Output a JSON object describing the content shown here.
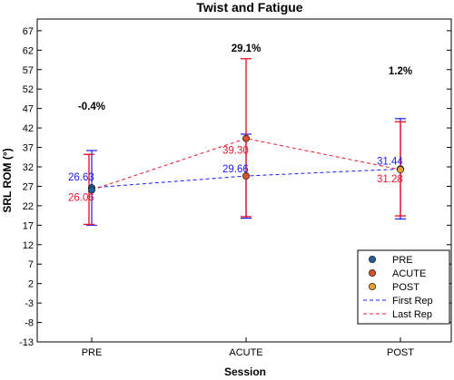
{
  "chart_data": {
    "type": "line",
    "title": "Twist and Fatigue",
    "xlabel": "Session",
    "ylabel": "SRL ROM (°)",
    "categories": [
      "PRE",
      "ACUTE",
      "POST"
    ],
    "ylim": [
      -13,
      70
    ],
    "yticks": [
      -13,
      -8,
      -3,
      2,
      7,
      12,
      17,
      22,
      27,
      32,
      37,
      42,
      47,
      52,
      57,
      62,
      67
    ],
    "series": [
      {
        "name": "First Rep",
        "color": "#1a1aff",
        "line_style": "dashed",
        "values": [
          26.63,
          29.66,
          31.44
        ],
        "labels": [
          "26.63",
          "29.66",
          "31.44"
        ],
        "error_low": [
          17.0,
          18.8,
          18.6
        ],
        "error_high": [
          36.2,
          40.4,
          44.4
        ]
      },
      {
        "name": "Last Rep",
        "color": "#e8192c",
        "line_style": "dashed",
        "values": [
          26.06,
          39.3,
          31.28
        ],
        "labels": [
          "26.06",
          "39.30",
          "31.28"
        ],
        "error_low": [
          17.2,
          19.2,
          19.4
        ],
        "error_high": [
          35.2,
          59.8,
          43.6
        ]
      }
    ],
    "markers": [
      {
        "name": "PRE",
        "color": "#1f5fa0"
      },
      {
        "name": "ACUTE",
        "color": "#d9542b"
      },
      {
        "name": "POST",
        "color": "#f0a030"
      }
    ],
    "annotations": [
      "-0.4%",
      "29.1%",
      "1.2%"
    ],
    "legend_position": "bottom-right",
    "grid": false
  }
}
